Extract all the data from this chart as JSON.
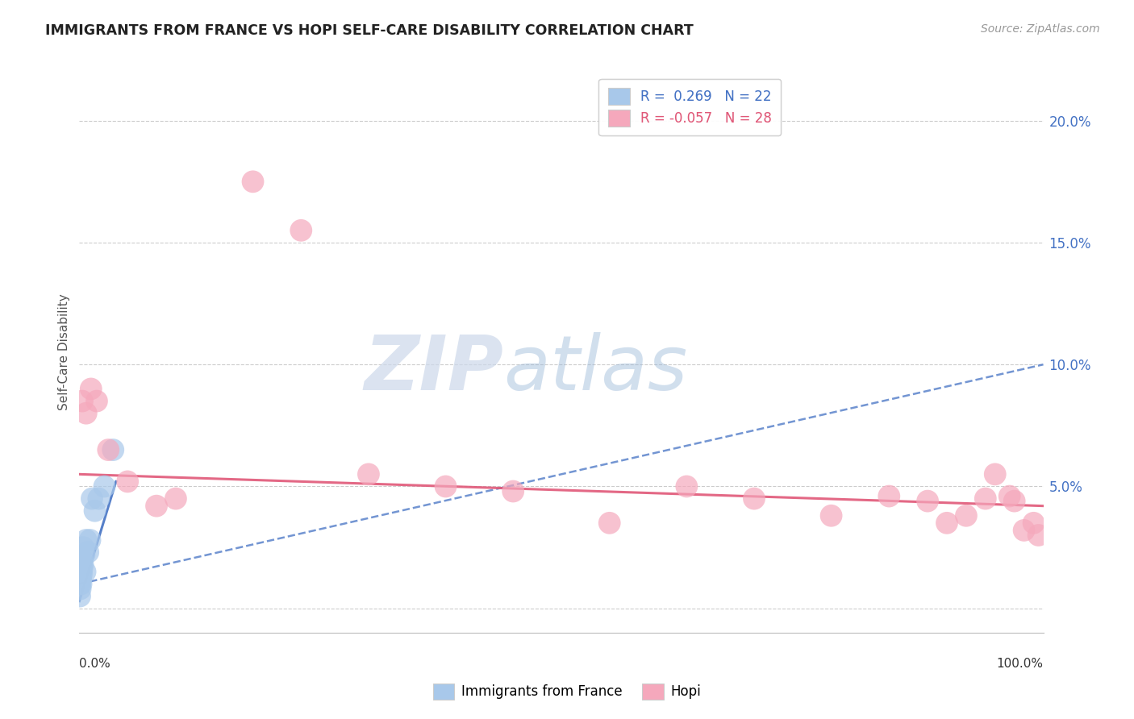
{
  "title": "IMMIGRANTS FROM FRANCE VS HOPI SELF-CARE DISABILITY CORRELATION CHART",
  "source": "Source: ZipAtlas.com",
  "ylabel": "Self-Care Disability",
  "legend_label1": "Immigrants from France",
  "legend_label2": "Hopi",
  "r1_text": "R =  0.269   N = 22",
  "r2_text": "R = -0.057   N = 28",
  "blue_fill": "#A8C8EA",
  "pink_fill": "#F5A8BC",
  "blue_line": "#4472C4",
  "pink_line": "#E05878",
  "grid_color": "#cccccc",
  "bg_color": "#ffffff",
  "xlim": [
    0,
    100
  ],
  "ylim": [
    -1,
    22
  ],
  "yticks": [
    0,
    5,
    10,
    15,
    20
  ],
  "blue_x": [
    0.05,
    0.08,
    0.1,
    0.12,
    0.15,
    0.18,
    0.2,
    0.22,
    0.25,
    0.3,
    0.35,
    0.4,
    0.5,
    0.6,
    0.7,
    0.9,
    1.1,
    1.3,
    1.6,
    2.0,
    2.6,
    3.5
  ],
  "blue_y": [
    0.5,
    1.0,
    0.8,
    1.5,
    1.2,
    1.0,
    1.8,
    1.4,
    1.6,
    2.0,
    1.8,
    2.5,
    2.2,
    1.5,
    2.8,
    2.3,
    2.8,
    4.5,
    4.0,
    4.5,
    5.0,
    6.5
  ],
  "pink_x": [
    0.3,
    0.7,
    1.2,
    1.8,
    3.0,
    5.0,
    8.0,
    10.0,
    18.0,
    23.0,
    30.0,
    38.0,
    45.0,
    55.0,
    63.0,
    70.0,
    78.0,
    84.0,
    88.0,
    90.0,
    92.0,
    94.0,
    95.0,
    96.5,
    97.0,
    98.0,
    99.0,
    99.5
  ],
  "pink_y": [
    8.5,
    8.0,
    9.0,
    8.5,
    6.5,
    5.2,
    4.2,
    4.5,
    17.5,
    15.5,
    5.5,
    5.0,
    4.8,
    3.5,
    5.0,
    4.5,
    3.8,
    4.6,
    4.4,
    3.5,
    3.8,
    4.5,
    5.5,
    4.6,
    4.4,
    3.2,
    3.5,
    3.0
  ],
  "blue_trendline_x": [
    0,
    100
  ],
  "blue_trendline_y": [
    1.0,
    10.0
  ],
  "pink_trendline_x": [
    0,
    100
  ],
  "pink_trendline_y": [
    5.5,
    4.2
  ]
}
